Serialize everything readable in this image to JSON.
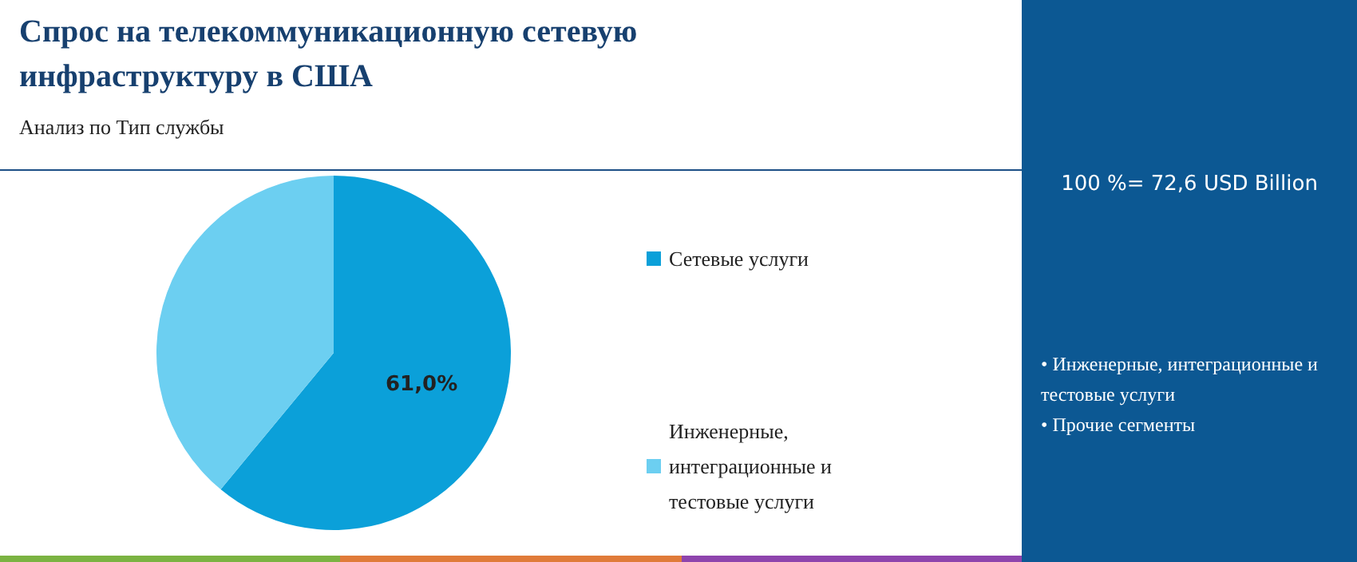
{
  "chart_data": {
    "type": "pie",
    "title": "Спрос на телекоммуникационную сетевую инфраструктуру в США",
    "subtitle": "Анализ по Тип службы",
    "categories": [
      "Сетевые услуги",
      "Инженерные, интеграционные и тестовые услуги"
    ],
    "values": [
      61.0,
      39.0
    ],
    "colors": [
      "#0ba0d9",
      "#6ccff1"
    ],
    "value_labels": [
      "61,0%",
      null
    ],
    "legend": "right",
    "annotations": [
      "100 %= 72,6 USD Billion",
      "• Инженерные, интеграционные и тестовые услуги",
      "• Прочие сегменты"
    ]
  }
}
